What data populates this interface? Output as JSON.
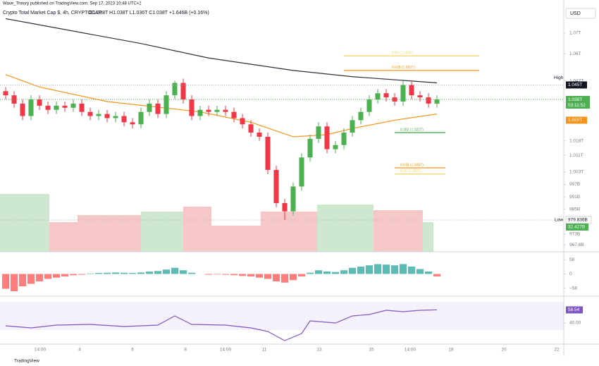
{
  "header": {
    "author_line": "Wave_Theory published on TradingView.com, Sep 17, 2023 10:48 UTC+2",
    "symbol_line": "Crypto Total Market Cap $, 4h, CRYPTOCAP",
    "ohlc": "O1.038T H1.038T L1.036T C1.038T +1.646B (+0.16%)"
  },
  "currency": "USD",
  "chart_data": {
    "type": "candlestick",
    "open": [
      1042,
      1040,
      1036,
      1030,
      1038,
      1035,
      1033,
      1035,
      1034,
      1036,
      1032,
      1030,
      1031,
      1029,
      1030,
      1027,
      1026,
      1032,
      1036,
      1031,
      1040,
      1046,
      1038,
      1030,
      1033,
      1032,
      1033,
      1032,
      1029,
      1026,
      1022,
      1020,
      1004,
      988,
      984,
      996,
      1010,
      1019,
      1025,
      1014,
      1016,
      1022,
      1028,
      1032,
      1038,
      1041,
      1039,
      1037,
      1045,
      1040,
      1039,
      1036
    ],
    "high": [
      1044,
      1042,
      1038,
      1040,
      1040,
      1037,
      1037,
      1037,
      1038,
      1038,
      1034,
      1033,
      1033,
      1032,
      1032,
      1029,
      1034,
      1038,
      1038,
      1042,
      1047,
      1048,
      1040,
      1035,
      1035,
      1035,
      1035,
      1034,
      1031,
      1028,
      1024,
      1022,
      1006,
      990,
      998,
      1012,
      1021,
      1027,
      1027,
      1018,
      1024,
      1030,
      1034,
      1040,
      1043,
      1043,
      1041,
      1047,
      1047,
      1042,
      1041,
      1040
    ],
    "low": [
      1038,
      1034,
      1028,
      1028,
      1033,
      1031,
      1031,
      1032,
      1032,
      1030,
      1028,
      1028,
      1027,
      1027,
      1025,
      1024,
      1024,
      1030,
      1029,
      1029,
      1038,
      1036,
      1028,
      1028,
      1030,
      1030,
      1030,
      1027,
      1024,
      1020,
      1018,
      1002,
      986,
      979.836,
      982,
      994,
      1008,
      1017,
      1012,
      1012,
      1014,
      1020,
      1026,
      1030,
      1036,
      1037,
      1035,
      1035,
      1038,
      1037,
      1034,
      1034
    ],
    "close": [
      1040,
      1036,
      1030,
      1038,
      1035,
      1033,
      1035,
      1034,
      1036,
      1032,
      1030,
      1031,
      1029,
      1030,
      1027,
      1026,
      1032,
      1036,
      1031,
      1040,
      1046,
      1038,
      1030,
      1033,
      1032,
      1033,
      1032,
      1029,
      1026,
      1022,
      1020,
      1004,
      988,
      984,
      996,
      1010,
      1019,
      1025,
      1014,
      1016,
      1022,
      1028,
      1032,
      1038,
      1041,
      1039,
      1037,
      1045,
      1040,
      1039,
      1036,
      1038
    ],
    "up_color": "#4caf50",
    "down_color": "#f23645",
    "ylim": [
      964.5,
      1086
    ],
    "yticks": [
      {
        "value": 1070,
        "label": "1.07T"
      },
      {
        "value": 1060,
        "label": "1.06T"
      },
      {
        "value": 1047,
        "label": "1.047T"
      },
      {
        "value": 1018,
        "label": "1.018T"
      },
      {
        "value": 1011,
        "label": "1.011T"
      },
      {
        "value": 1003,
        "label": "1.003T"
      },
      {
        "value": 997,
        "label": "997B"
      },
      {
        "value": 991,
        "label": "991B"
      },
      {
        "value": 985,
        "label": "985B"
      },
      {
        "value": 973,
        "label": "973B"
      },
      {
        "value": 967.8,
        "label": "967.8B"
      }
    ],
    "moving_averages": [
      {
        "color": "#2a2e39",
        "x": [
          0,
          4,
          16,
          24,
          34,
          41,
          51
        ],
        "values": [
          1077,
          1074,
          1065,
          1058,
          1052,
          1049,
          1046
        ]
      },
      {
        "color": "#f7931a",
        "x": [
          0,
          4,
          12,
          23,
          29,
          34,
          38,
          41,
          46,
          51
        ],
        "values": [
          1050,
          1044,
          1037,
          1032,
          1027,
          1020,
          1021,
          1024,
          1028,
          1031
        ]
      }
    ],
    "fib_levels": [
      {
        "label": "0.65 (1.059T)",
        "value": 1059,
        "color": "#f5d76e",
        "x": [
          40,
          56
        ]
      },
      {
        "label": "0.618 (1.052T)",
        "value": 1052,
        "color": "#f7931a",
        "x": [
          40,
          56
        ]
      },
      {
        "label": "0.382 (1.022T)",
        "value": 1022,
        "color": "#4caf50",
        "x": [
          46,
          52
        ]
      },
      {
        "label": "0.618 (1.005T)",
        "value": 1005,
        "color": "#f7931a",
        "x": [
          46,
          52
        ]
      },
      {
        "label": "0.65 (1.002T)",
        "value": 1002,
        "color": "#f5d76e",
        "x": [
          46,
          52
        ]
      }
    ],
    "markers": {
      "high_label": "High",
      "high_value": {
        "value": 1045,
        "label": "1.045T"
      },
      "last": {
        "value": 1038,
        "label": "1.038T"
      },
      "countdown": "03:11:52",
      "ma_value": {
        "value": 1028,
        "label": "1.028T"
      },
      "low_label": "Low",
      "low_value": {
        "value": 979.836,
        "label": "979.836B"
      },
      "volume_label": "32.427B"
    }
  },
  "macd": {
    "ylim": [
      -90,
      90
    ],
    "yticks": [
      {
        "value": 58,
        "label": "58"
      },
      {
        "value": 0,
        "label": "0"
      },
      {
        "value": -58,
        "label": "−58"
      }
    ],
    "histogram": [
      -60,
      -70,
      -50,
      -40,
      -30,
      -20,
      -15,
      -10,
      -5,
      -3,
      2,
      4,
      5,
      6,
      5,
      4,
      6,
      10,
      12,
      18,
      25,
      15,
      5,
      0,
      -3,
      -2,
      -3,
      -5,
      -8,
      -10,
      -15,
      -20,
      -30,
      -35,
      -25,
      -10,
      5,
      15,
      10,
      8,
      15,
      25,
      30,
      35,
      40,
      38,
      35,
      40,
      30,
      20,
      10,
      -10
    ]
  },
  "rsi": {
    "ylim": [
      10,
      78
    ],
    "yticks": [
      {
        "value": 40,
        "label": "40.00"
      }
    ],
    "x": [
      0,
      3,
      6,
      10,
      14,
      18,
      20,
      22,
      26,
      29,
      31,
      33,
      35,
      36,
      39,
      41,
      43,
      45,
      47,
      49,
      51
    ],
    "values": [
      36,
      33,
      37,
      38,
      35,
      37,
      50,
      38,
      37,
      33,
      28,
      15,
      25,
      43,
      40,
      50,
      52,
      58,
      56,
      58,
      58.54
    ]
  },
  "time_axis": [
    "14:00",
    "4",
    "6",
    "8",
    "14:00",
    "11",
    "13",
    "15",
    "14:00",
    "18",
    "20",
    "22"
  ],
  "footer": "TradingView"
}
